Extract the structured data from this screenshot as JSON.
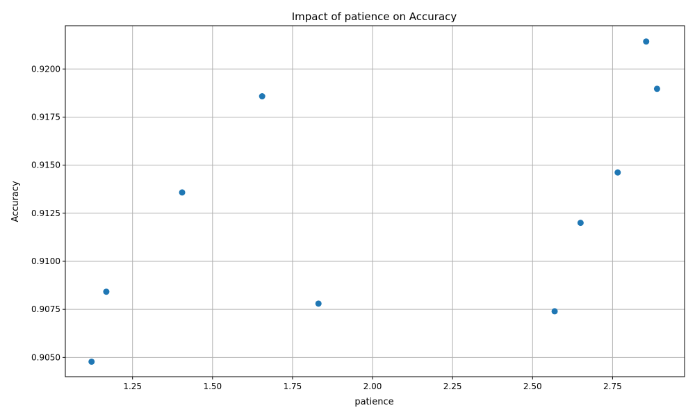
{
  "chart_data": {
    "type": "scatter",
    "title": "Impact of patience on Accuracy",
    "xlabel": "patience",
    "ylabel": "Accuracy",
    "xlim": [
      1.04,
      2.975
    ],
    "ylim": [
      0.904,
      0.92225
    ],
    "xticks": [
      1.25,
      1.5,
      1.75,
      2.0,
      2.25,
      2.5,
      2.75
    ],
    "xtick_labels": [
      "1.25",
      "1.50",
      "1.75",
      "2.00",
      "2.25",
      "2.50",
      "2.75"
    ],
    "yticks": [
      0.905,
      0.9075,
      0.91,
      0.9125,
      0.915,
      0.9175,
      0.92
    ],
    "ytick_labels": [
      "0.9050",
      "0.9075",
      "0.9100",
      "0.9125",
      "0.9150",
      "0.9175",
      "0.9200"
    ],
    "grid": true,
    "marker_color": "#1f77b4",
    "points": [
      {
        "x": 1.122,
        "y": 0.90478
      },
      {
        "x": 1.168,
        "y": 0.90842
      },
      {
        "x": 1.405,
        "y": 0.91358
      },
      {
        "x": 1.655,
        "y": 0.91858
      },
      {
        "x": 1.831,
        "y": 0.9078
      },
      {
        "x": 2.569,
        "y": 0.9074
      },
      {
        "x": 2.65,
        "y": 0.912
      },
      {
        "x": 2.766,
        "y": 0.91462
      },
      {
        "x": 2.855,
        "y": 0.92143
      },
      {
        "x": 2.889,
        "y": 0.91897
      }
    ]
  }
}
